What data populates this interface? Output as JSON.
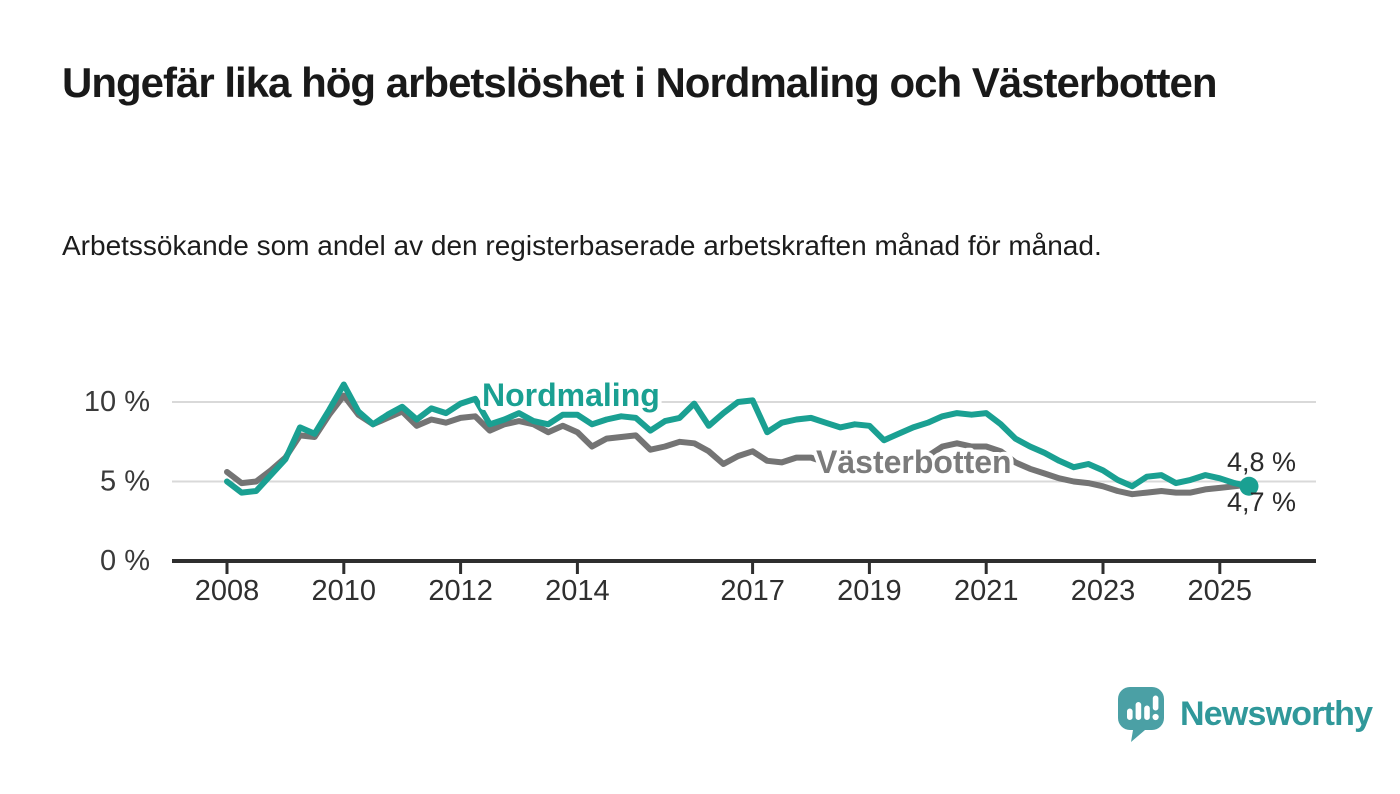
{
  "title": "Ungefär lika hög arbetslöshet i Nordmaling och Västerbotten",
  "subtitle": "Arbetssökande som andel av den registerbaserade arbetskraften månad för månad.",
  "footer": {
    "brand": "Newsworthy",
    "logo_icon": "speech-bubble-bar-chart-icon"
  },
  "colors": {
    "nordmaling_line": "#1AA092",
    "vasterbotten_line": "#747474",
    "vasterbotten_label": "#7B7B7B",
    "axis": "#2E2E2E",
    "grid": "#D9D9D9",
    "tick_text": "#2F2F2F",
    "end_label_text": "#2B2B2B",
    "brand_text": "#30989A",
    "logo_bubble": "#4BA0A5"
  },
  "chart_data": {
    "type": "line",
    "title": "Ungefär lika hög arbetslöshet i Nordmaling och Västerbotten",
    "subtitle": "Arbetssökande som andel av den registerbaserade arbetskraften månad för månad.",
    "xlabel": "",
    "ylabel": "",
    "x_unit": "year (monthly series, sampled quarterly)",
    "x_start": 2008,
    "x_step": 0.25,
    "xlim": [
      2007.05,
      2026.6
    ],
    "ylim": [
      0,
      12.6
    ],
    "grid": "horizontal",
    "legend_position": "inline-labels",
    "yticks": [
      {
        "value": 0,
        "label": "0 %"
      },
      {
        "value": 5,
        "label": "5 %"
      },
      {
        "value": 10,
        "label": "10 %"
      }
    ],
    "xticks": [
      {
        "value": 2008,
        "label": "2008"
      },
      {
        "value": 2010,
        "label": "2010"
      },
      {
        "value": 2012,
        "label": "2012"
      },
      {
        "value": 2014,
        "label": "2014"
      },
      {
        "value": 2017,
        "label": "2017"
      },
      {
        "value": 2019,
        "label": "2019"
      },
      {
        "value": 2021,
        "label": "2021"
      },
      {
        "value": 2023,
        "label": "2023"
      },
      {
        "value": 2025,
        "label": "2025"
      }
    ],
    "series": [
      {
        "name": "Västerbotten",
        "color": "#747474",
        "label_color": "#7B7B7B",
        "end_label": "4,8 %",
        "end_dot": false,
        "values": [
          5.6,
          4.9,
          5.0,
          5.7,
          6.5,
          7.9,
          7.8,
          9.2,
          10.4,
          9.2,
          8.6,
          9.0,
          9.4,
          8.5,
          8.9,
          8.7,
          9.0,
          9.1,
          8.2,
          8.6,
          8.8,
          8.6,
          8.1,
          8.5,
          8.1,
          7.2,
          7.7,
          7.8,
          7.9,
          7.0,
          7.2,
          7.5,
          7.4,
          6.9,
          6.1,
          6.6,
          6.9,
          6.3,
          6.2,
          6.5,
          6.5,
          6.2,
          6.1,
          6.3,
          6.4,
          6.0,
          6.2,
          6.4,
          6.6,
          7.2,
          7.4,
          7.2,
          7.2,
          6.9,
          6.2,
          5.8,
          5.5,
          5.2,
          5.0,
          4.9,
          4.7,
          4.4,
          4.2,
          4.3,
          4.4,
          4.3,
          4.3,
          4.5,
          4.6,
          4.7,
          4.8
        ]
      },
      {
        "name": "Nordmaling",
        "color": "#1AA092",
        "label_color": "#1AA092",
        "end_label": "4,7 %",
        "end_dot": true,
        "values": [
          5.0,
          4.3,
          4.4,
          5.4,
          6.4,
          8.4,
          8.0,
          9.5,
          11.1,
          9.4,
          8.6,
          9.2,
          9.7,
          8.9,
          9.6,
          9.3,
          9.9,
          10.2,
          8.6,
          8.9,
          9.3,
          8.8,
          8.6,
          9.2,
          9.2,
          8.6,
          8.9,
          9.1,
          9.0,
          8.2,
          8.8,
          9.0,
          9.9,
          8.5,
          9.3,
          10.0,
          10.1,
          8.1,
          8.7,
          8.9,
          9.0,
          8.7,
          8.4,
          8.6,
          8.5,
          7.6,
          8.0,
          8.4,
          8.7,
          9.1,
          9.3,
          9.2,
          9.3,
          8.6,
          7.7,
          7.2,
          6.8,
          6.3,
          5.9,
          6.1,
          5.7,
          5.1,
          4.7,
          5.3,
          5.4,
          4.9,
          5.1,
          5.4,
          5.2,
          4.9,
          4.7
        ]
      }
    ]
  }
}
